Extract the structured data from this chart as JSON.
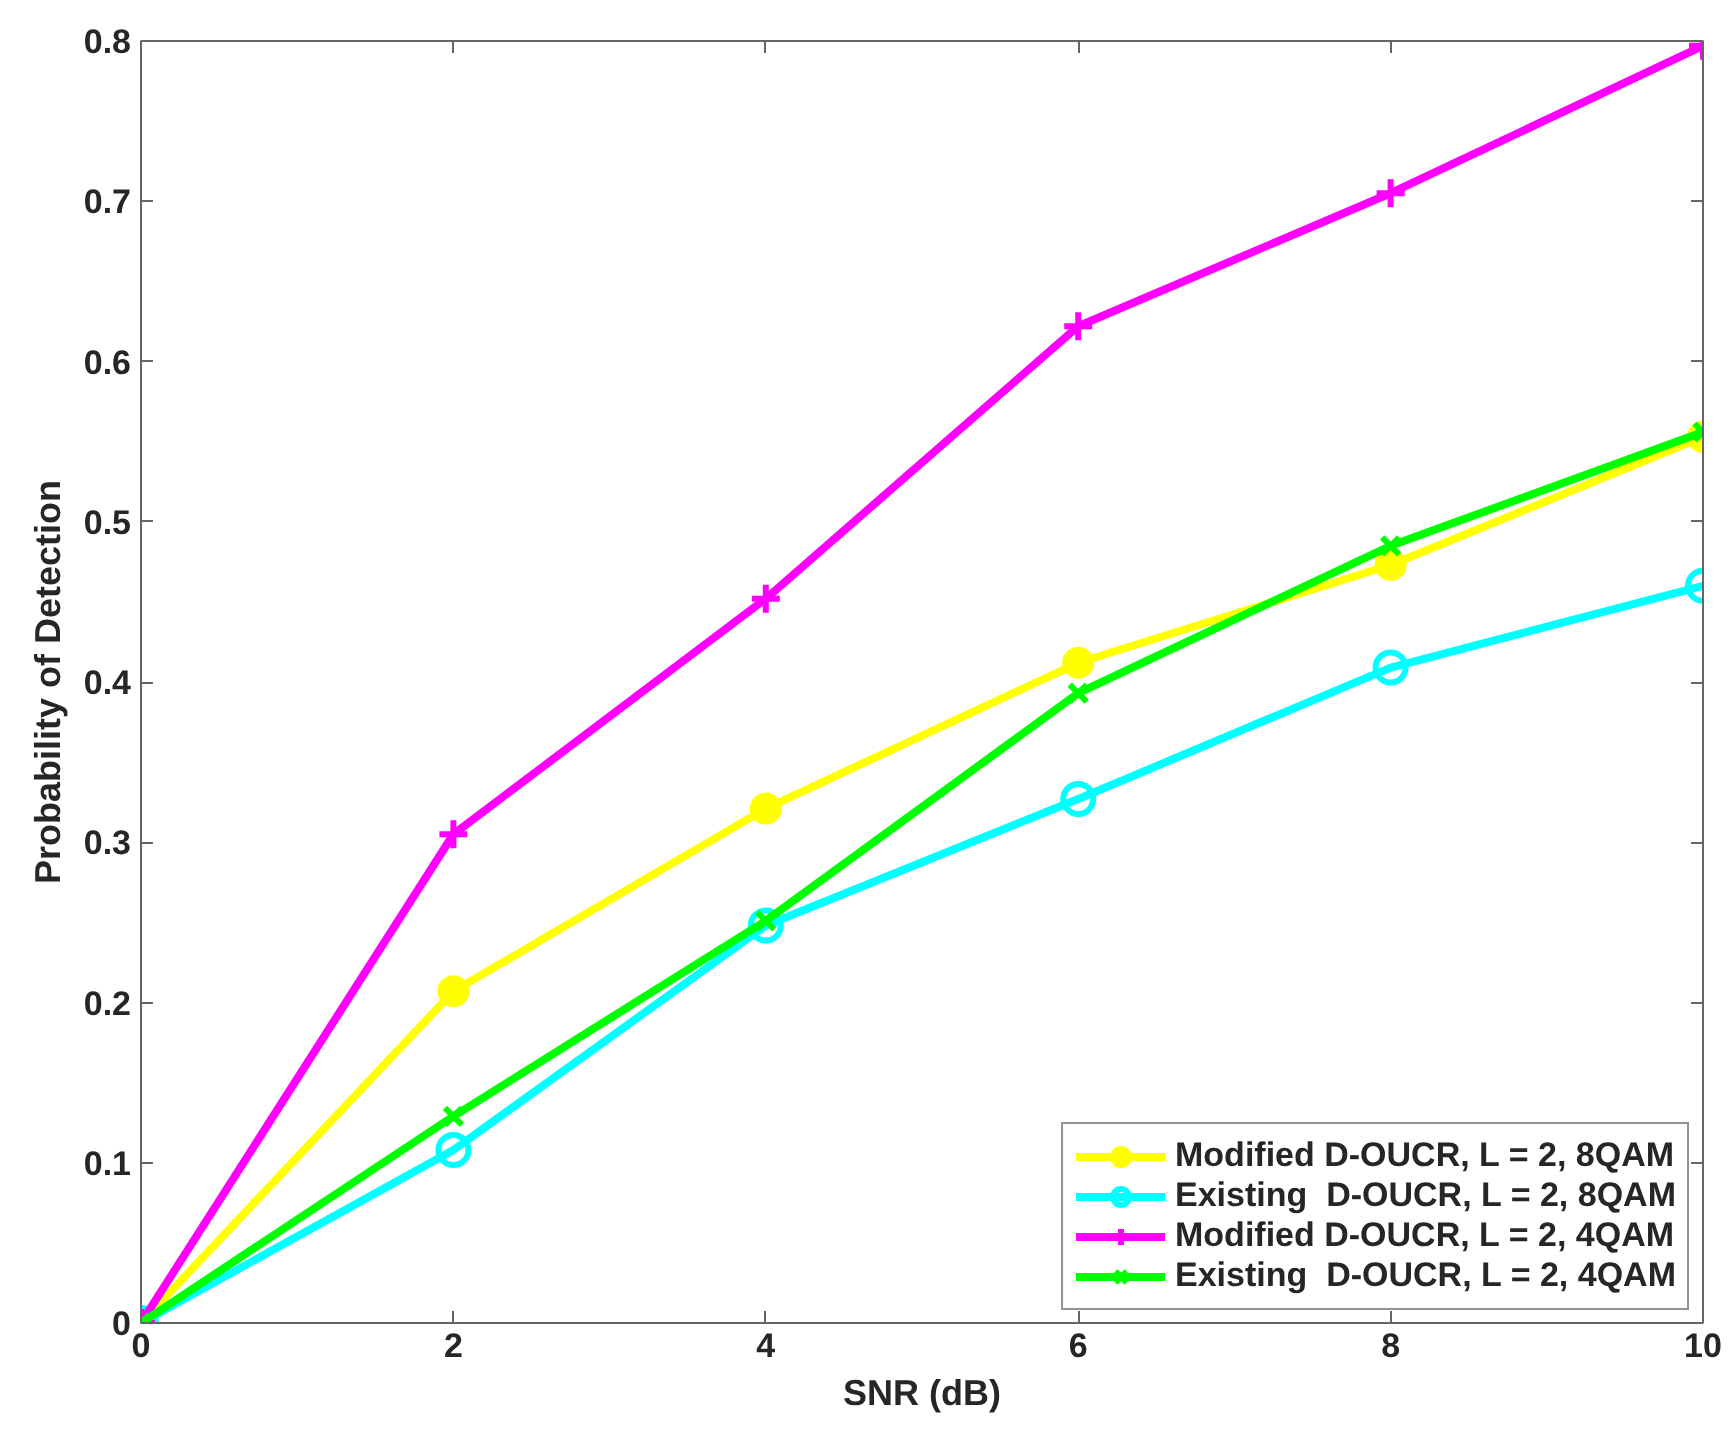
{
  "chart_data": {
    "type": "line",
    "xlabel": "SNR (dB)",
    "ylabel": "Probability of Detection",
    "x": [
      0,
      2,
      4,
      6,
      8,
      10
    ],
    "series": [
      {
        "name": "Modified D-OUCR, L = 2, 8QAM",
        "color": "#ffff00",
        "marker": "circle",
        "values": [
          0,
          0.207,
          0.321,
          0.412,
          0.473,
          0.553
        ]
      },
      {
        "name": "Existing  D-OUCR, L = 2, 8QAM",
        "color": "#00ffff",
        "marker": "circle_open",
        "values": [
          0,
          0.108,
          0.248,
          0.327,
          0.409,
          0.46
        ]
      },
      {
        "name": "Modified D-OUCR, L = 2, 4QAM",
        "color": "#ff00ff",
        "marker": "cross",
        "values": [
          0,
          0.305,
          0.452,
          0.622,
          0.705,
          0.797
        ]
      },
      {
        "name": "Existing  D-OUCR, L = 2, 4QAM",
        "color": "#00ff00",
        "marker": "x",
        "values": [
          0,
          0.129,
          0.251,
          0.393,
          0.485,
          0.556
        ]
      }
    ],
    "xlim": [
      0,
      10
    ],
    "xticks": [
      0,
      2,
      4,
      6,
      8,
      10
    ],
    "ylim": [
      0,
      0.8
    ],
    "yticks": [
      0,
      0.1,
      0.2,
      0.3,
      0.4,
      0.5,
      0.6,
      0.7,
      0.8
    ],
    "grid": false,
    "legend": "bottom right",
    "line_style": "solid"
  }
}
